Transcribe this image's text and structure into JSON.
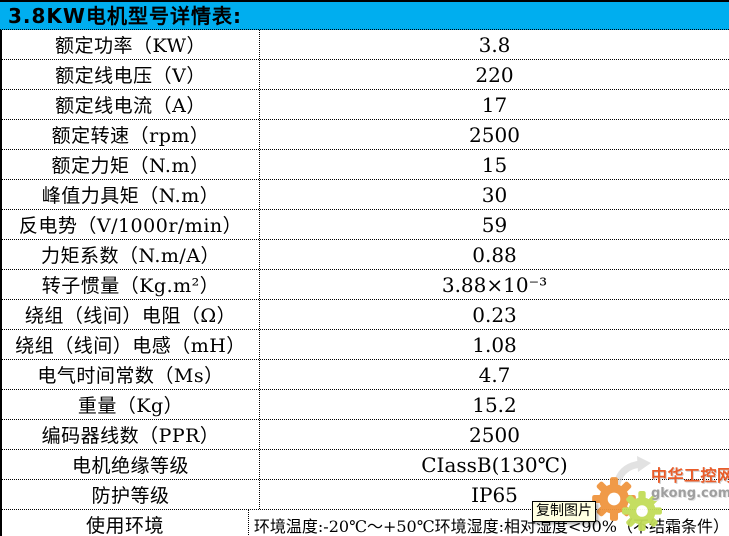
{
  "header": {
    "title": "3.8KW电机型号详情表:"
  },
  "table": {
    "rows": [
      {
        "label": "额定功率（KW）",
        "value": "3.8"
      },
      {
        "label": "额定线电压（V）",
        "value": "220"
      },
      {
        "label": "额定线电流（A）",
        "value": "17"
      },
      {
        "label": "额定转速（rpm）",
        "value": "2500"
      },
      {
        "label": "额定力矩（N.m）",
        "value": "15"
      },
      {
        "label": "峰值力具矩（N.m）",
        "value": "30"
      },
      {
        "label": "反电势（V/1000r/min）",
        "value": "59"
      },
      {
        "label": "力矩系数（N.m/A）",
        "value": "0.88"
      },
      {
        "label": "转子惯量（Kg.m²）",
        "value": "3.88×10⁻³"
      },
      {
        "label": "绕组（线间）电阻（Ω）",
        "value": "0.23"
      },
      {
        "label": "绕组（线间）电感（mH）",
        "value": "1.08"
      },
      {
        "label": "电气时间常数（Ms）",
        "value": "4.7"
      },
      {
        "label": "重量（Kg）",
        "value": "15.2"
      },
      {
        "label": "编码器线数（PPR）",
        "value": "2500"
      },
      {
        "label": "电机绝缘等级",
        "value": "CIassB(130℃)"
      },
      {
        "label": "防护等级",
        "value": "IP65"
      },
      {
        "label": "使用环境",
        "value": "环境温度:-20℃～+50℃环境湿度:相对湿度<90%（不结霜条件）"
      }
    ]
  },
  "tooltip": {
    "label": "复制图片"
  },
  "watermark": {
    "site_name": "中华工控网",
    "site_url": "gkong.com"
  },
  "colors": {
    "header_bg": "#00AEEF",
    "tooltip_bg": "#FFFFE1",
    "gear_orange": "#F0953F",
    "gear_green": "#C2DD59",
    "site_name_color": "#E8541E",
    "site_url_color": "#9A9A9A"
  }
}
